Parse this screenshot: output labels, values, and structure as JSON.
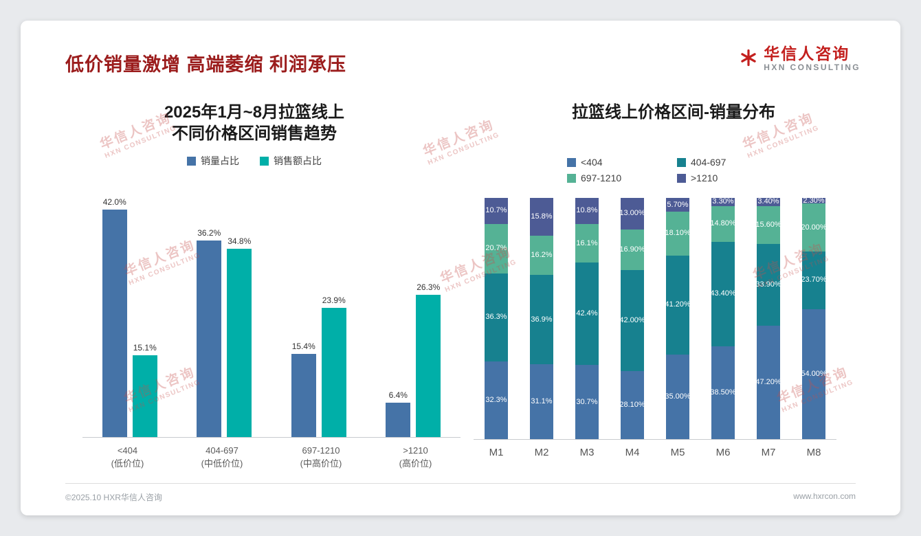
{
  "page": {
    "title": "低价销量激增 高端萎缩 利润承压",
    "logo": {
      "cn": "华信人咨询",
      "en": "HXN CONSULTING",
      "icon": "asterisk-flower-icon"
    },
    "watermark": {
      "cn": "华信人咨询",
      "en": "HXN CONSULTING"
    },
    "footer": {
      "left": "©2025.10 HXR华信人咨询",
      "right": "www.hxrcon.com"
    }
  },
  "colors": {
    "title_red": "#9B1C1C",
    "logo_red": "#C3201E",
    "blue": "#4573A7",
    "teal": "#00AFA8",
    "petrol": "#17818F",
    "green": "#55B295",
    "navy": "#4D5B95",
    "axis_line": "#C8CBCF",
    "watermark_red": "rgba(197,80,75,0.33)"
  },
  "chart_data": [
    {
      "type": "bar",
      "title": "2025年1月~8月拉篮线上 不同价格区间销售趋势",
      "title_lines": [
        "2025年1月~8月拉篮线上",
        "不同价格区间销售趋势"
      ],
      "legend_position": "top",
      "grid": false,
      "ylim": [
        0,
        45
      ],
      "value_suffix": "%",
      "categories": [
        {
          "lines": [
            "<404",
            "(低价位)"
          ]
        },
        {
          "lines": [
            "404-697",
            "(中低价位)"
          ]
        },
        {
          "lines": [
            "697-1210",
            "(中高价位)"
          ]
        },
        {
          "lines": [
            ">1210",
            "(高价位)"
          ]
        }
      ],
      "series": [
        {
          "name": "销量占比",
          "color_key": "blue",
          "values": [
            42.0,
            36.2,
            15.4,
            6.4
          ],
          "labels": [
            "42.0%",
            "36.2%",
            "15.4%",
            "6.4%"
          ]
        },
        {
          "name": "销售额占比",
          "color_key": "teal",
          "values": [
            15.1,
            34.8,
            23.9,
            26.3
          ],
          "labels": [
            "15.1%",
            "34.8%",
            "23.9%",
            "26.3%"
          ]
        }
      ]
    },
    {
      "type": "stacked-bar",
      "title": "拉篮线上价格区间-销量分布",
      "legend_position": "top",
      "grid": false,
      "ylim": [
        0,
        100
      ],
      "value_suffix": "%",
      "categories": [
        "M1",
        "M2",
        "M3",
        "M4",
        "M5",
        "M6",
        "M7",
        "M8"
      ],
      "series": [
        {
          "name": "<404",
          "color_key": "blue",
          "values": [
            32.3,
            31.1,
            30.7,
            28.1,
            35.0,
            38.5,
            47.2,
            54.0
          ],
          "labels": [
            "32.3%",
            "31.1%",
            "30.7%",
            "28.10%",
            "35.00%",
            "38.50%",
            "47.20%",
            "54.00%"
          ]
        },
        {
          "name": "404-697",
          "color_key": "petrol",
          "values": [
            36.3,
            36.9,
            42.4,
            42.0,
            41.2,
            43.4,
            33.9,
            23.7
          ],
          "labels": [
            "36.3%",
            "36.9%",
            "42.4%",
            "42.00%",
            "41.20%",
            "43.40%",
            "33.90%",
            "23.70%"
          ]
        },
        {
          "name": "697-1210",
          "color_key": "green",
          "values": [
            20.7,
            16.2,
            16.1,
            16.9,
            18.1,
            14.8,
            15.6,
            20.0
          ],
          "labels": [
            "20.7%",
            "16.2%",
            "16.1%",
            "16.90%",
            "18.10%",
            "14.80%",
            "15.60%",
            "20.00%"
          ]
        },
        {
          "name": ">1210",
          "color_key": "navy",
          "values": [
            10.7,
            15.8,
            10.8,
            13.0,
            5.7,
            3.3,
            3.4,
            2.3
          ],
          "labels": [
            "10.7%",
            "15.8%",
            "10.8%",
            "13.00%",
            "5.70%",
            "3.30%",
            "3.40%",
            "2.30%"
          ]
        }
      ]
    }
  ]
}
